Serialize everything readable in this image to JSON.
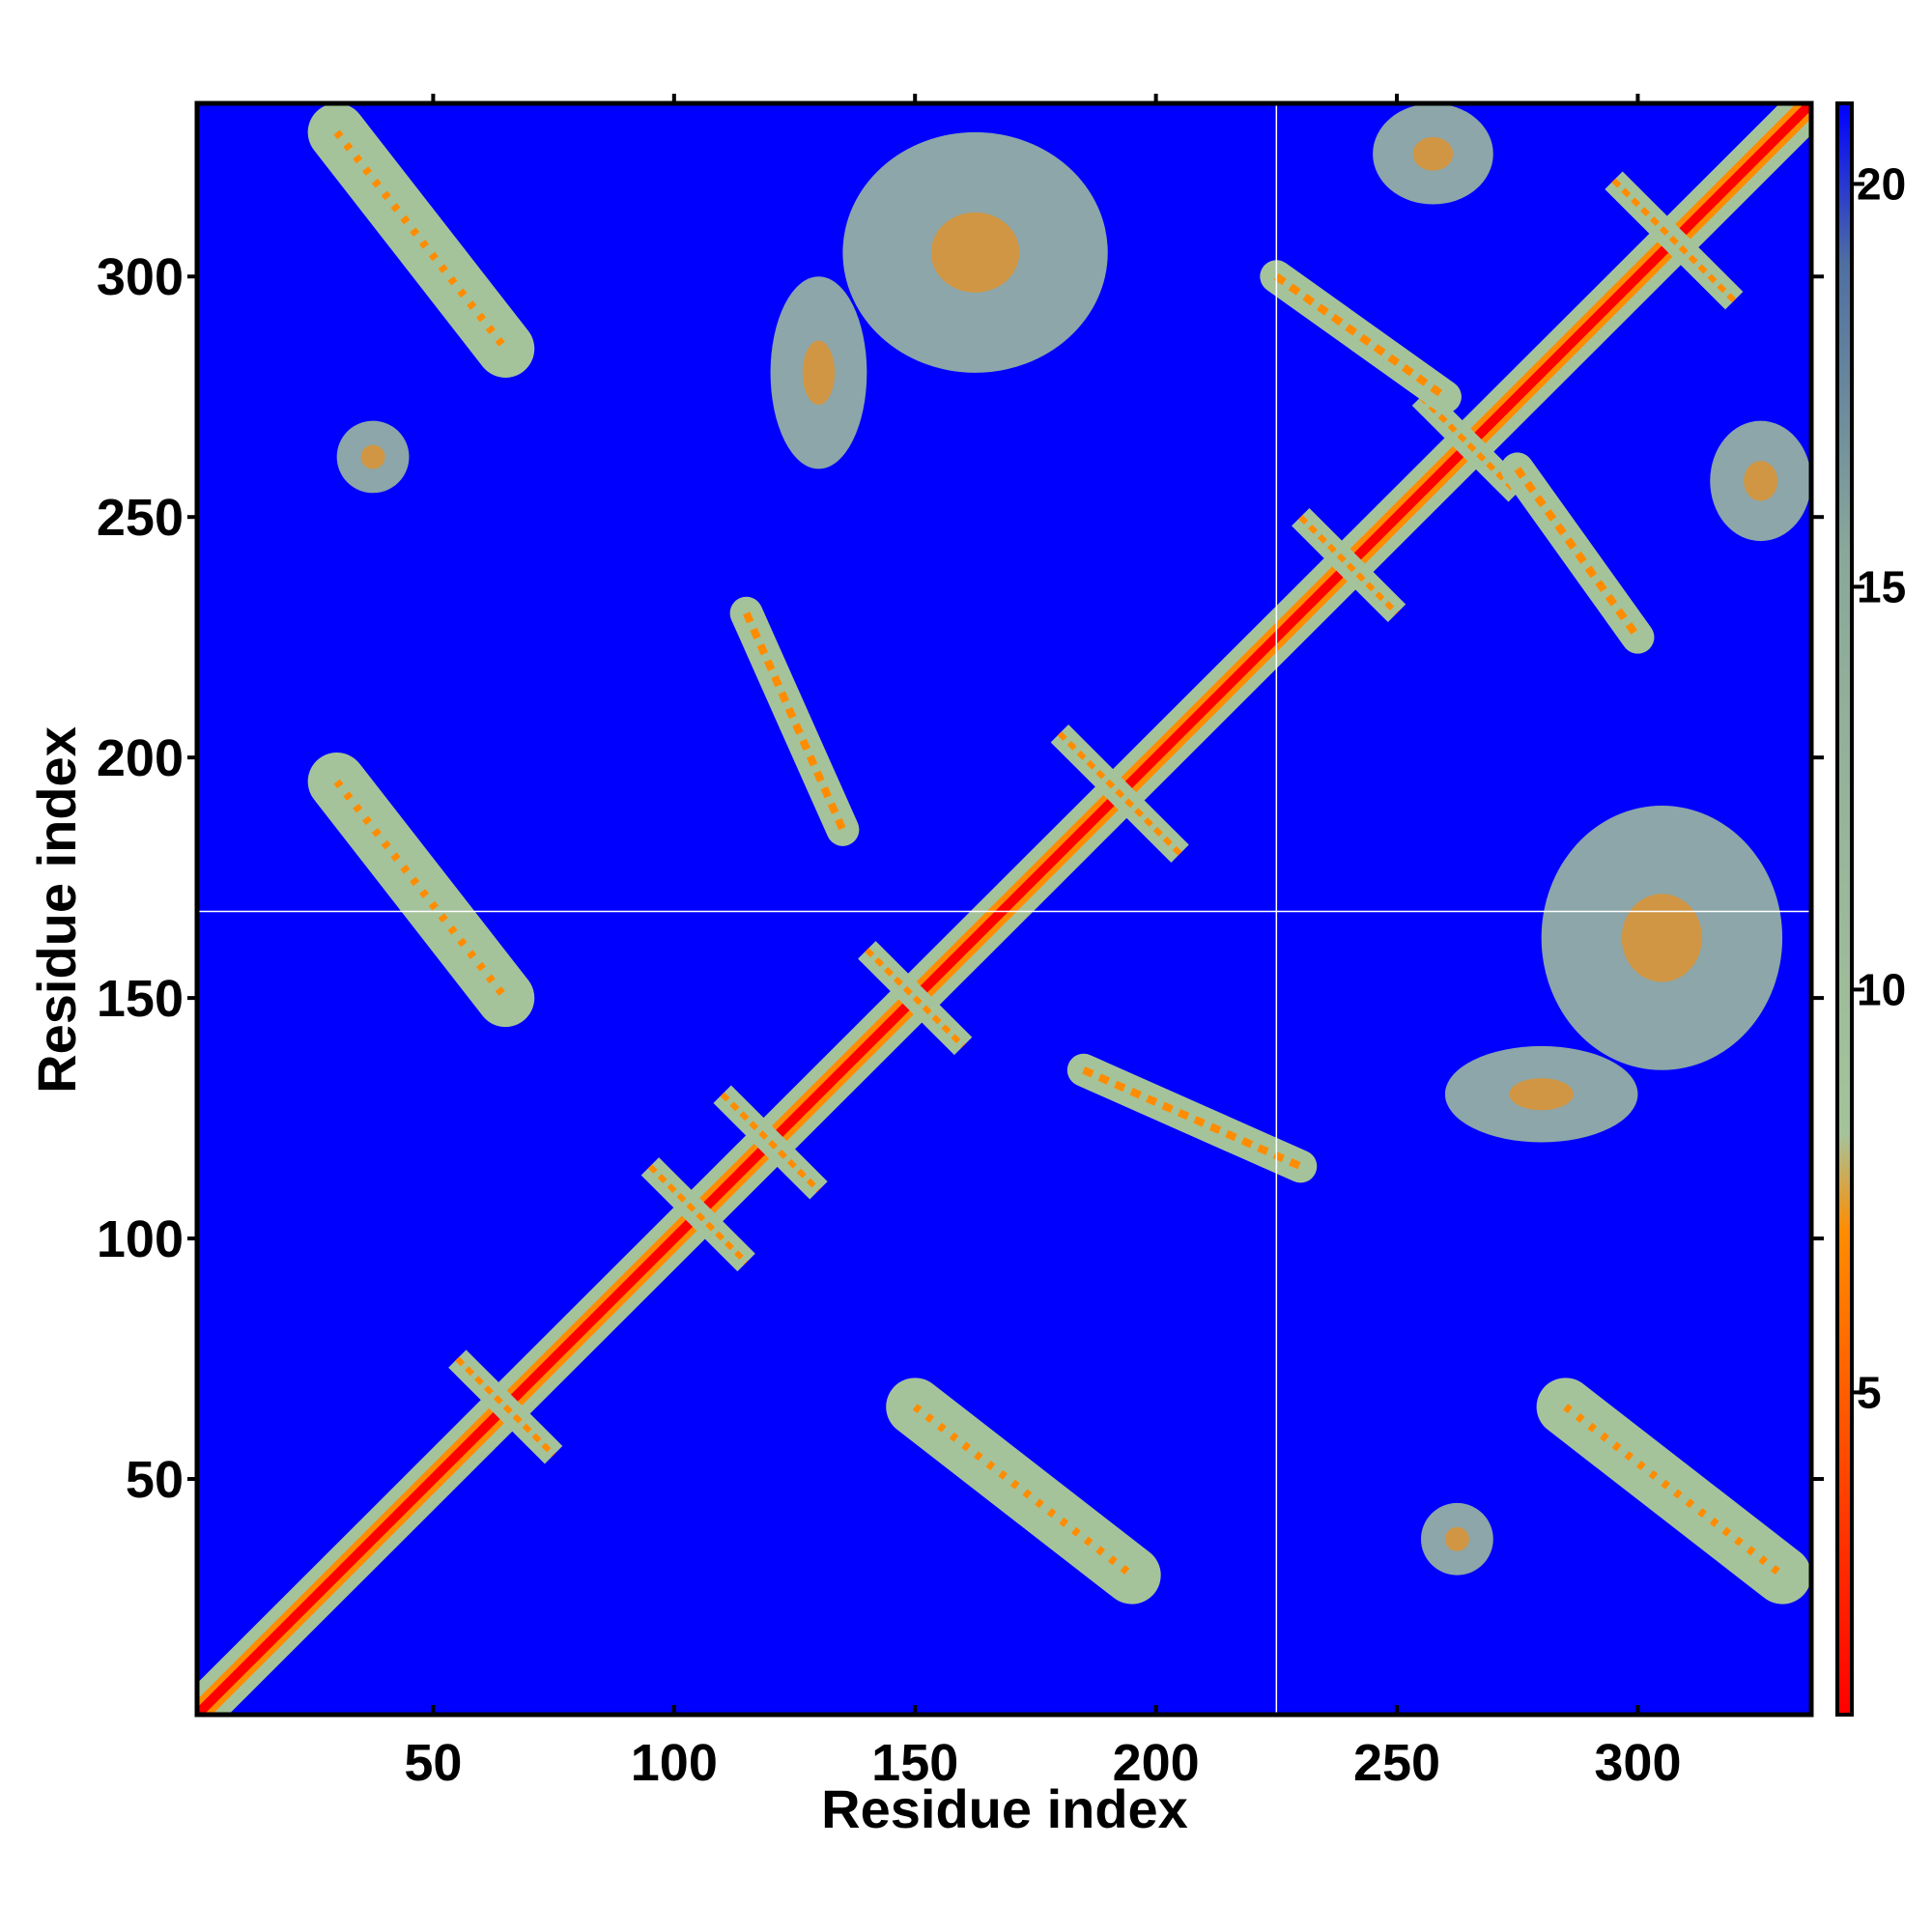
{
  "chart_data": {
    "type": "heatmap",
    "title": "",
    "xlabel": "Residue index",
    "ylabel": "Residue index",
    "xlim": [
      1,
      336
    ],
    "ylim": [
      1,
      336
    ],
    "x_ticks": [
      50,
      100,
      150,
      200,
      250,
      300
    ],
    "y_ticks": [
      50,
      100,
      150,
      200,
      250,
      300
    ],
    "x_tick_labels": [
      "50",
      "100",
      "150",
      "200",
      "250",
      "300"
    ],
    "y_tick_labels": [
      "50",
      "100",
      "150",
      "200",
      "250",
      "300"
    ],
    "colorbar": {
      "range": [
        1,
        21
      ],
      "ticks": [
        5,
        10,
        15,
        20
      ],
      "tick_labels": [
        "5",
        "10",
        "15",
        "20"
      ],
      "colors": [
        "#ff0000",
        "#ff8c00",
        "#a5c39a",
        "#4f6fa0",
        "#0000ff"
      ]
    },
    "background_color": "#0000ff",
    "gap_lines": {
      "x": 225,
      "y": 168
    },
    "description_of_values": "pairwise residue distance matrix, symmetric about the diagonal; red = close, blue = far",
    "contact_clusters": [
      {
        "x": [
          1,
          336
        ],
        "y": [
          1,
          336
        ],
        "kind": "main diagonal"
      },
      {
        "x": [
          30,
          65
        ],
        "y": [
          285,
          330
        ],
        "kind": "parallel band"
      },
      {
        "x": [
          285,
          330
        ],
        "y": [
          30,
          65
        ],
        "kind": "parallel band"
      },
      {
        "x": [
          30,
          65
        ],
        "y": [
          150,
          195
        ],
        "kind": "parallel band"
      },
      {
        "x": [
          150,
          195
        ],
        "y": [
          30,
          65
        ],
        "kind": "parallel band"
      },
      {
        "x": [
          55,
          75
        ],
        "y": [
          55,
          75
        ],
        "kind": "cross"
      },
      {
        "x": [
          95,
          115
        ],
        "y": [
          95,
          115
        ],
        "kind": "cross"
      },
      {
        "x": [
          110,
          130
        ],
        "y": [
          110,
          130
        ],
        "kind": "cross"
      },
      {
        "x": [
          140,
          160
        ],
        "y": [
          140,
          160
        ],
        "kind": "cross"
      },
      {
        "x": [
          180,
          205
        ],
        "y": [
          180,
          205
        ],
        "kind": "cross"
      },
      {
        "x": [
          230,
          250
        ],
        "y": [
          230,
          250
        ],
        "kind": "cross"
      },
      {
        "x": [
          255,
          275
        ],
        "y": [
          255,
          275
        ],
        "kind": "cross"
      },
      {
        "x": [
          295,
          320
        ],
        "y": [
          295,
          320
        ],
        "kind": "cross"
      },
      {
        "x": [
          115,
          135
        ],
        "y": [
          185,
          230
        ],
        "kind": "antiparallel band"
      },
      {
        "x": [
          185,
          230
        ],
        "y": [
          115,
          135
        ],
        "kind": "antiparallel band"
      },
      {
        "x": [
          225,
          260
        ],
        "y": [
          275,
          300
        ],
        "kind": "antiparallel band"
      },
      {
        "x": [
          275,
          300
        ],
        "y": [
          225,
          260
        ],
        "kind": "antiparallel band"
      },
      {
        "x": [
          135,
          190
        ],
        "y": [
          280,
          330
        ],
        "kind": "band"
      },
      {
        "x": [
          280,
          330
        ],
        "y": [
          135,
          190
        ],
        "kind": "band"
      },
      {
        "x": [
          30,
          45
        ],
        "y": [
          255,
          270
        ],
        "kind": "patch"
      },
      {
        "x": [
          255,
          270
        ],
        "y": [
          30,
          45
        ],
        "kind": "patch"
      },
      {
        "x": [
          260,
          300
        ],
        "y": [
          120,
          140
        ],
        "kind": "band"
      },
      {
        "x": [
          120,
          140
        ],
        "y": [
          260,
          300
        ],
        "kind": "band"
      },
      {
        "x": [
          315,
          336
        ],
        "y": [
          245,
          270
        ],
        "kind": "patch"
      },
      {
        "x": [
          245,
          270
        ],
        "y": [
          315,
          336
        ],
        "kind": "patch"
      }
    ]
  }
}
